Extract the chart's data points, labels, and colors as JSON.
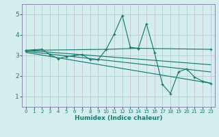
{
  "xlabel": "Humidex (Indice chaleur)",
  "xlim": [
    -0.5,
    23.5
  ],
  "ylim": [
    0.5,
    5.5
  ],
  "yticks": [
    1,
    2,
    3,
    4,
    5
  ],
  "xticks": [
    0,
    1,
    2,
    3,
    4,
    5,
    6,
    7,
    8,
    9,
    10,
    11,
    12,
    13,
    14,
    15,
    16,
    17,
    18,
    19,
    20,
    21,
    22,
    23
  ],
  "bg_color": "#d4eeee",
  "grid_color": "#c8c8d8",
  "line_color": "#1a7a6e",
  "main_line": {
    "x": [
      0,
      1,
      2,
      3,
      4,
      5,
      6,
      7,
      8,
      9,
      10,
      11,
      12,
      13,
      14,
      15,
      16,
      17,
      18,
      19,
      20,
      21,
      22,
      23
    ],
    "y": [
      3.25,
      3.28,
      3.3,
      3.05,
      2.85,
      2.95,
      3.0,
      3.05,
      2.8,
      2.8,
      3.3,
      4.05,
      4.95,
      3.4,
      3.35,
      4.55,
      3.15,
      1.6,
      1.15,
      2.2,
      2.35,
      1.95,
      1.75,
      1.65
    ]
  },
  "flat_line": {
    "x": [
      0,
      10,
      14,
      23
    ],
    "y": [
      3.25,
      3.3,
      3.35,
      3.3
    ]
  },
  "diag_lines": [
    {
      "x": [
        0,
        23
      ],
      "y": [
        3.25,
        2.55
      ]
    },
    {
      "x": [
        0,
        23
      ],
      "y": [
        3.2,
        2.2
      ]
    },
    {
      "x": [
        0,
        23
      ],
      "y": [
        3.15,
        1.65
      ]
    }
  ]
}
